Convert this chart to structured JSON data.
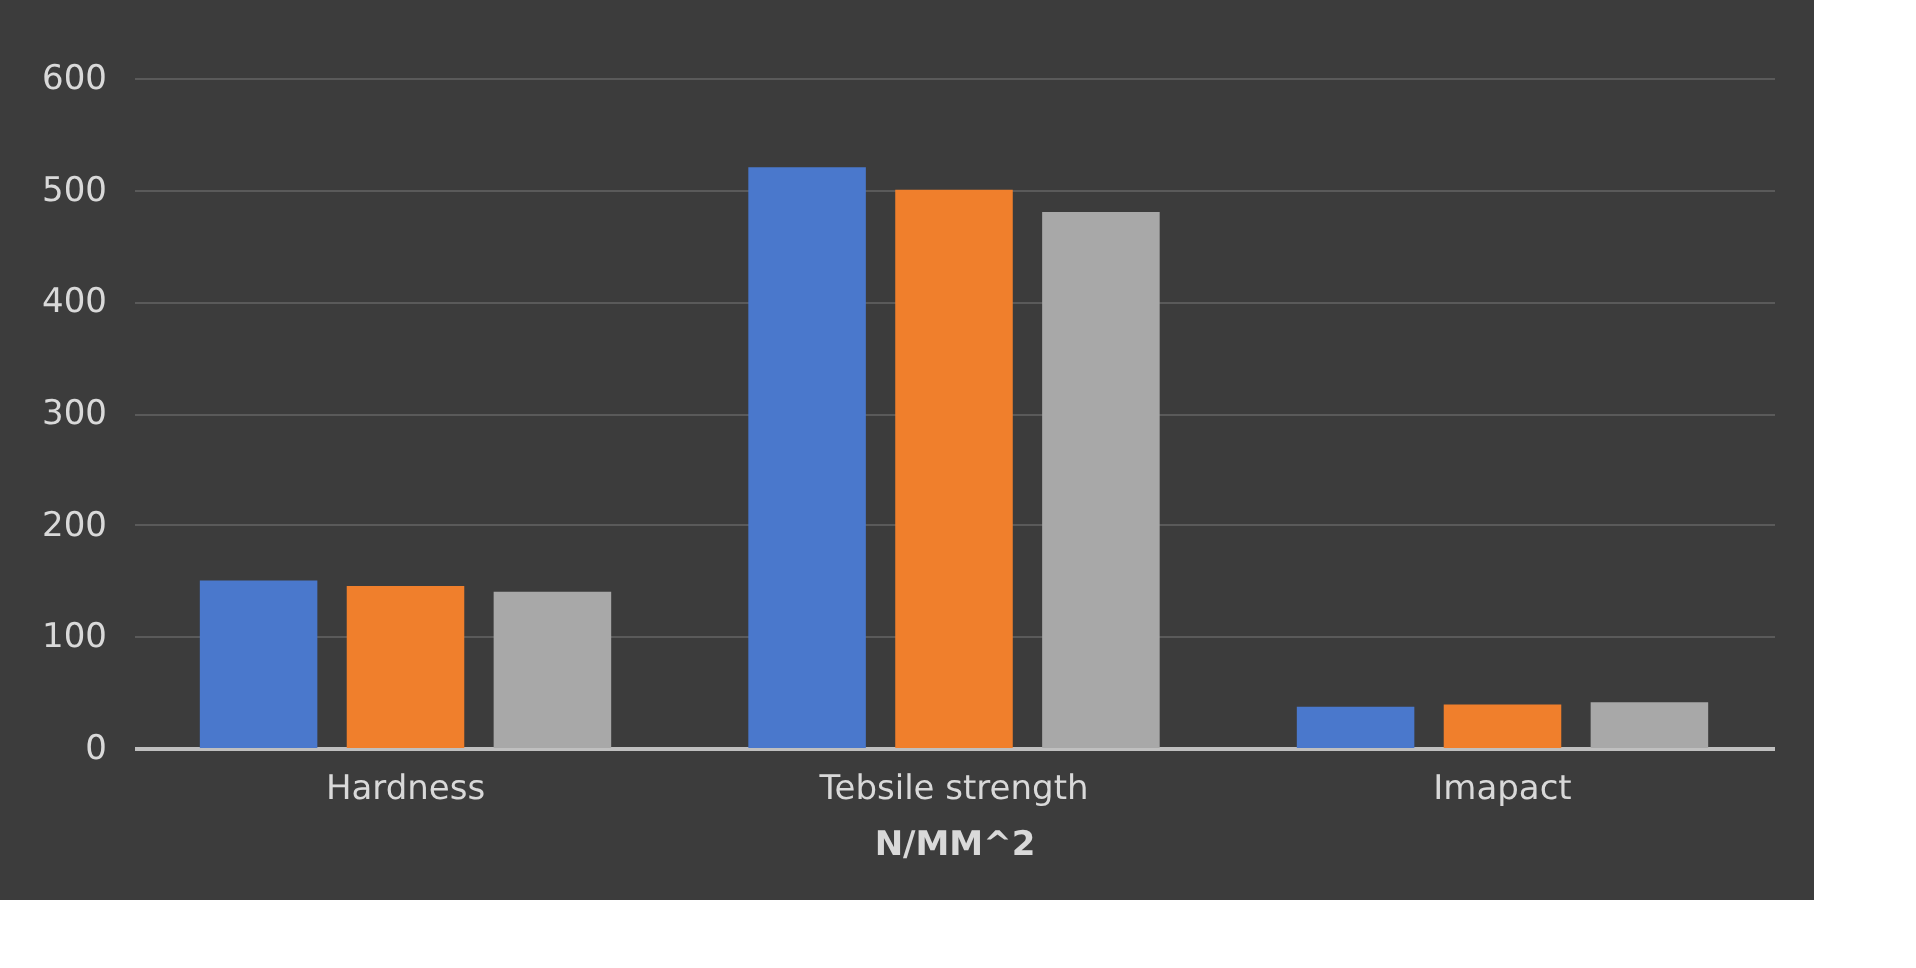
{
  "chart_data": {
    "type": "bar",
    "xlabel": "N/MM^2",
    "categories": [
      "Hardness",
      "Tebsile strength",
      "Imapact"
    ],
    "series": [
      {
        "color": "#4a78cc",
        "values": [
          150,
          520,
          37
        ]
      },
      {
        "color": "#f07f2c",
        "values": [
          145,
          500,
          39
        ]
      },
      {
        "color": "#a8a8a8",
        "values": [
          140,
          480,
          41
        ]
      }
    ],
    "ylim": [
      0,
      600
    ],
    "yticks": [
      0,
      100,
      200,
      300,
      400,
      500,
      600
    ],
    "grid": "y",
    "legend": false
  }
}
